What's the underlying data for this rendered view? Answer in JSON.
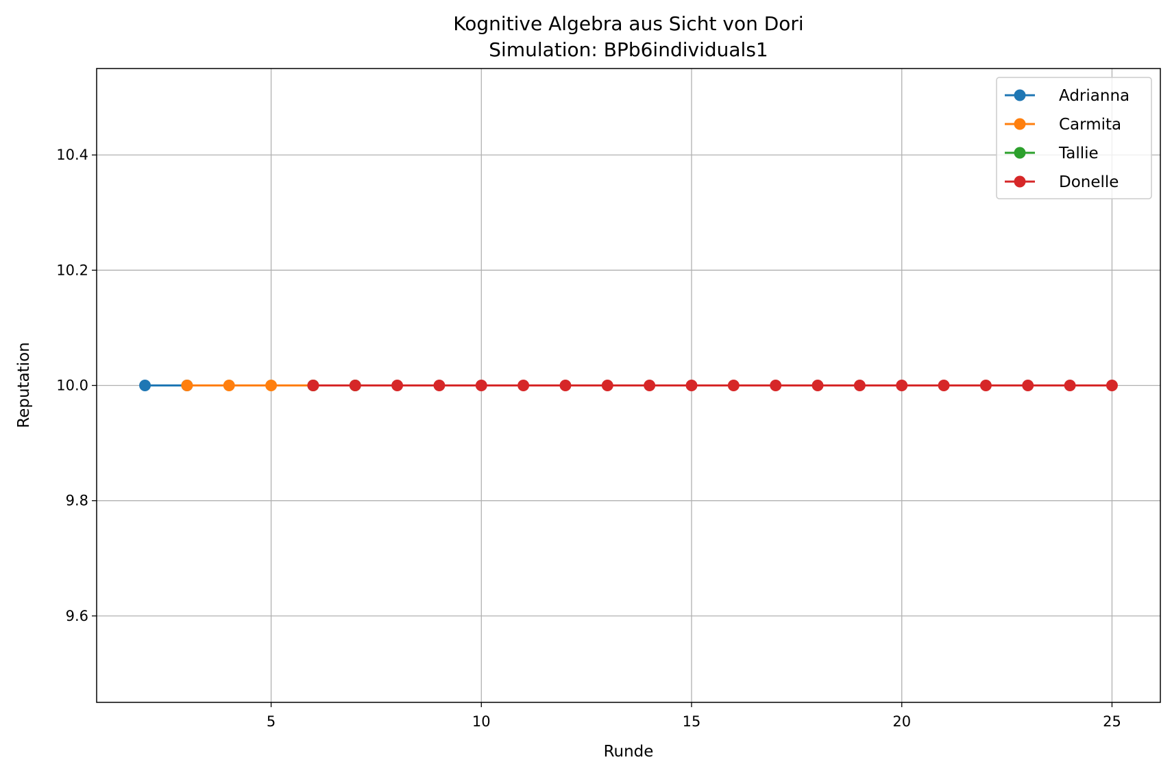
{
  "chart_data": {
    "type": "line",
    "title": "Kognitive Algebra aus Sicht von Dori",
    "subtitle": "Simulation: BPb6individuals1",
    "xlabel": "Runde",
    "ylabel": "Reputation",
    "xlim": [
      0.85,
      26.15
    ],
    "ylim": [
      9.45,
      10.55
    ],
    "xticks": [
      5,
      10,
      15,
      20,
      25
    ],
    "xtick_labels": [
      "5",
      "10",
      "15",
      "20",
      "25"
    ],
    "yticks": [
      9.6,
      9.8,
      10.0,
      10.2,
      10.4
    ],
    "ytick_labels": [
      "9.6",
      "9.8",
      "10.0",
      "10.2",
      "10.4"
    ],
    "grid": true,
    "legend_position": "top-right",
    "series": [
      {
        "name": "Adrianna",
        "color": "#1f77b4",
        "x": [
          2,
          3
        ],
        "y": [
          10.0,
          10.0
        ]
      },
      {
        "name": "Carmita",
        "color": "#ff7f0e",
        "x": [
          3,
          4,
          5,
          6
        ],
        "y": [
          10.0,
          10.0,
          10.0,
          10.0
        ]
      },
      {
        "name": "Tallie",
        "color": "#2ca02c",
        "x": [
          6,
          7
        ],
        "y": [
          10.0,
          10.0
        ]
      },
      {
        "name": "Donelle",
        "color": "#d62728",
        "x": [
          6,
          7,
          8,
          9,
          10,
          11,
          12,
          13,
          14,
          15,
          16,
          17,
          18,
          19,
          20,
          21,
          22,
          23,
          24,
          25
        ],
        "y": [
          10.0,
          10.0,
          10.0,
          10.0,
          10.0,
          10.0,
          10.0,
          10.0,
          10.0,
          10.0,
          10.0,
          10.0,
          10.0,
          10.0,
          10.0,
          10.0,
          10.0,
          10.0,
          10.0,
          10.0
        ]
      }
    ]
  }
}
